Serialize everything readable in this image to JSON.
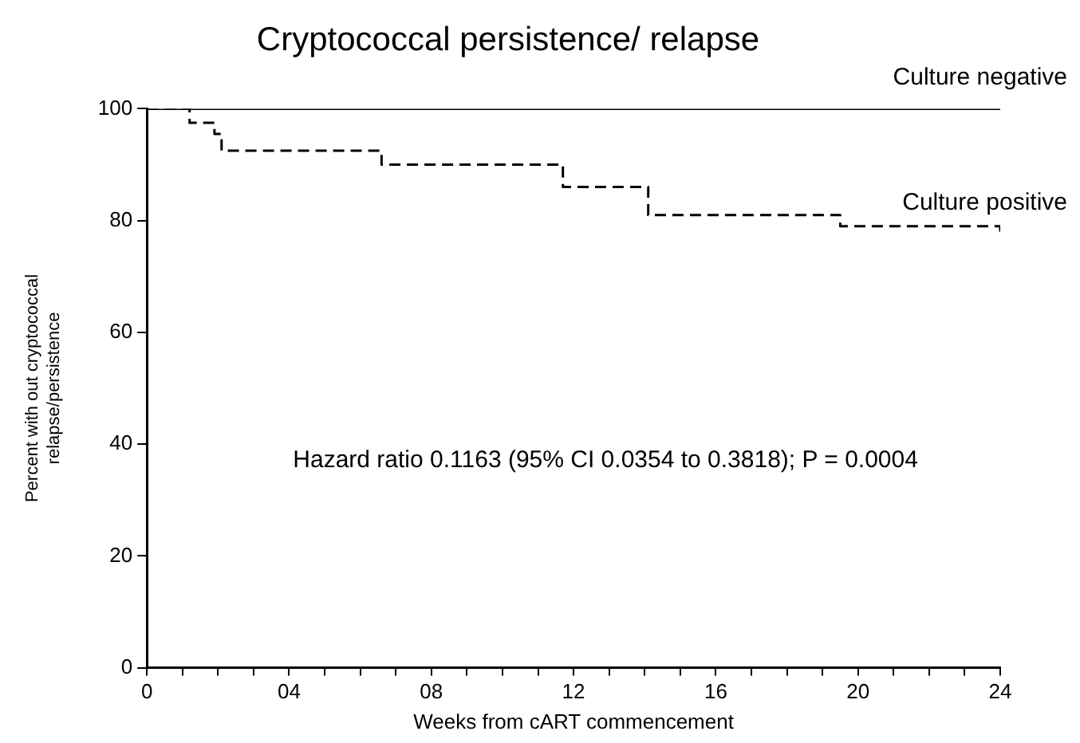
{
  "chart_data": {
    "type": "step",
    "title": "Cryptococcal persistence/ relapse",
    "xlabel": "Weeks from cART commencement",
    "ylabel": "Percent with out cryptococcal\nrelapse/persistence",
    "xlim": [
      0,
      24
    ],
    "xticks": [
      0,
      {
        "value": 1,
        "label": null
      },
      {
        "value": 2,
        "label": null
      },
      {
        "value": 3,
        "label": null
      },
      {
        "value": 4,
        "label": "04"
      },
      {
        "value": 5,
        "label": null
      },
      {
        "value": 6,
        "label": null
      },
      {
        "value": 7,
        "label": null
      },
      {
        "value": 8,
        "label": "08"
      },
      {
        "value": 9,
        "label": null
      },
      {
        "value": 10,
        "label": null
      },
      {
        "value": 11,
        "label": null
      },
      12,
      {
        "value": 13,
        "label": null
      },
      {
        "value": 14,
        "label": null
      },
      {
        "value": 15,
        "label": null
      },
      16,
      {
        "value": 17,
        "label": null
      },
      {
        "value": 18,
        "label": null
      },
      {
        "value": 19,
        "label": null
      },
      20,
      {
        "value": 21,
        "label": null
      },
      {
        "value": 22,
        "label": null
      },
      {
        "value": 23,
        "label": null
      },
      24
    ],
    "ylim": [
      0,
      100
    ],
    "yticks": [
      0,
      20,
      40,
      60,
      80,
      100
    ],
    "grid": false,
    "legend": false,
    "marker": "none",
    "series": [
      {
        "name": "Culture negative",
        "color": "#000000",
        "line_style": "solid",
        "x": [
          0,
          24
        ],
        "values": [
          100,
          100
        ]
      },
      {
        "name": "Culture positive",
        "color": "#000000",
        "line_style": "dashed",
        "x": [
          0,
          1.2,
          1.9,
          2.1,
          6.6,
          11.7,
          14.1,
          19.5,
          24,
          24
        ],
        "values": [
          100,
          97.5,
          95.5,
          92.5,
          90,
          86,
          81,
          79,
          79,
          77
        ]
      }
    ],
    "annotations": [
      "Hazard ratio 0.1163 (95% CI 0.0354 to 0.3818); P = 0.0004"
    ]
  }
}
